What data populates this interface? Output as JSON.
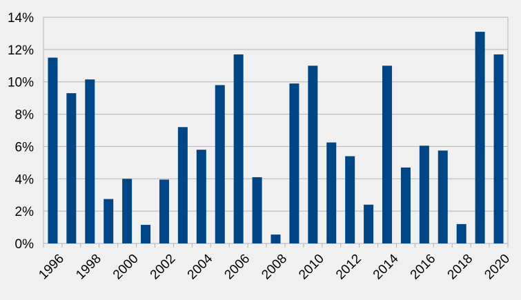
{
  "chart_data": {
    "type": "bar",
    "title": "",
    "xlabel": "",
    "ylabel": "",
    "categories": [
      "1996",
      "1997",
      "1998",
      "1999",
      "2000",
      "2001",
      "2002",
      "2003",
      "2004",
      "2005",
      "2006",
      "2007",
      "2008",
      "2009",
      "2010",
      "2011",
      "2012",
      "2013",
      "2014",
      "2015",
      "2016",
      "2017",
      "2018",
      "2019",
      "2020"
    ],
    "x_tick_labels": [
      "1996",
      "1998",
      "2000",
      "2002",
      "2004",
      "2006",
      "2008",
      "2010",
      "2012",
      "2014",
      "2016",
      "2018",
      "2020"
    ],
    "values": [
      11.5,
      9.3,
      10.15,
      2.75,
      4.0,
      1.15,
      3.95,
      7.2,
      5.8,
      9.8,
      11.7,
      4.1,
      0.55,
      9.9,
      11.0,
      6.25,
      5.4,
      2.4,
      11.0,
      4.7,
      6.05,
      5.75,
      1.2,
      13.1,
      11.7
    ],
    "ylim": [
      0,
      14
    ],
    "y_ticks": [
      0,
      2,
      4,
      6,
      8,
      10,
      12,
      14
    ],
    "y_tick_labels": [
      "0%",
      "2%",
      "4%",
      "6%",
      "8%",
      "10%",
      "12%",
      "14%"
    ],
    "grid": true,
    "legend": "none",
    "colors": {
      "bar": "#004586",
      "grid": "#b3b3b3",
      "background": "#f0f0f0"
    }
  }
}
